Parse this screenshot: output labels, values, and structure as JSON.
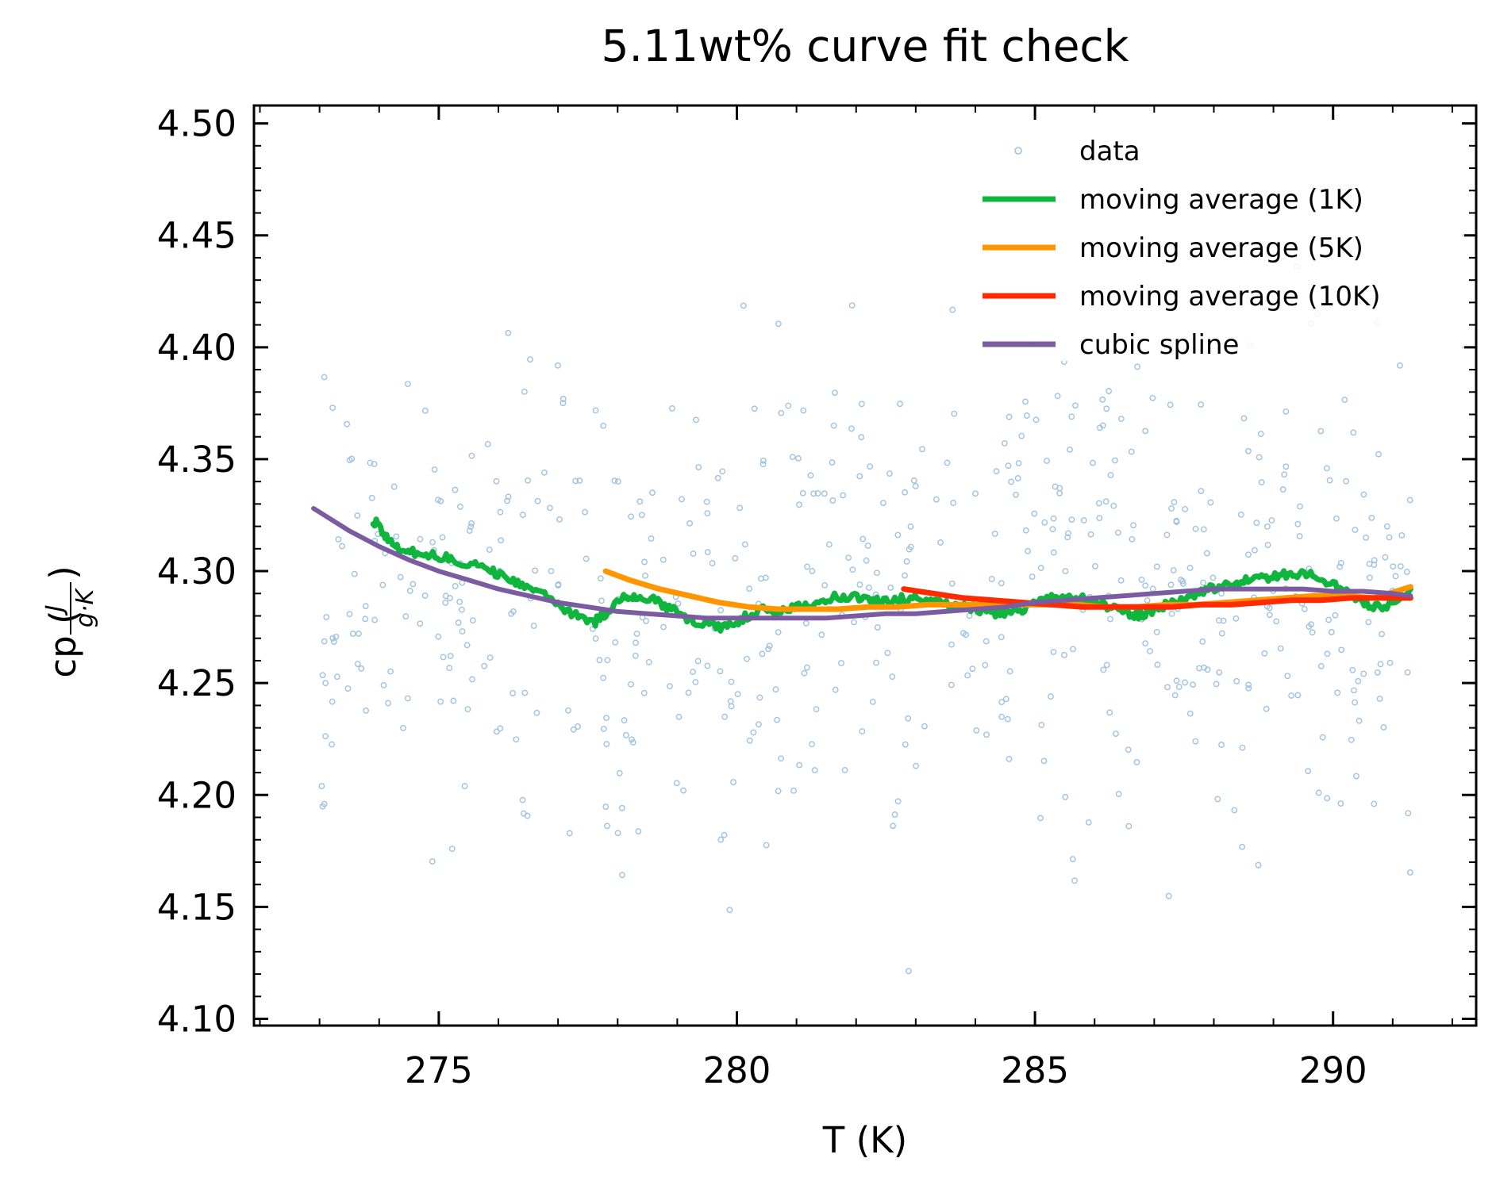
{
  "chart_data": {
    "type": "line",
    "title": "5.11wt% curve fit check",
    "xlabel": "T (K)",
    "ylabel": {
      "main": "cp (",
      "frac_num": "J",
      "frac_den": "g·K",
      "close": ")"
    },
    "xlim": [
      271.9,
      292.4
    ],
    "ylim": [
      4.097,
      4.508
    ],
    "xticks": [
      {
        "value": 275,
        "label": "275"
      },
      {
        "value": 280,
        "label": "280"
      },
      {
        "value": 285,
        "label": "285"
      },
      {
        "value": 290,
        "label": "290"
      }
    ],
    "yticks": [
      {
        "value": 4.1,
        "label": "4.10"
      },
      {
        "value": 4.15,
        "label": "4.15"
      },
      {
        "value": 4.2,
        "label": "4.20"
      },
      {
        "value": 4.25,
        "label": "4.25"
      },
      {
        "value": 4.3,
        "label": "4.30"
      },
      {
        "value": 4.35,
        "label": "4.35"
      },
      {
        "value": 4.4,
        "label": "4.40"
      },
      {
        "value": 4.45,
        "label": "4.45"
      },
      {
        "value": 4.5,
        "label": "4.50"
      }
    ],
    "legend_position": "top-right",
    "series": [
      {
        "name": "data",
        "kind": "scatter",
        "color": "#9ec2e0",
        "scatter_x_range": [
          273.0,
          291.3
        ],
        "scatter_y_center": 4.29,
        "scatter_y_spread": 0.055,
        "scatter_count": 620
      },
      {
        "name": "moving average (1K)",
        "kind": "line",
        "color": "#10b53e",
        "points": [
          [
            273.9,
            4.323
          ],
          [
            274.1,
            4.316
          ],
          [
            274.3,
            4.31
          ],
          [
            274.6,
            4.308
          ],
          [
            274.9,
            4.307
          ],
          [
            275.2,
            4.306
          ],
          [
            275.5,
            4.303
          ],
          [
            275.8,
            4.301
          ],
          [
            276.1,
            4.298
          ],
          [
            276.4,
            4.293
          ],
          [
            276.7,
            4.29
          ],
          [
            277.0,
            4.285
          ],
          [
            277.3,
            4.28
          ],
          [
            277.6,
            4.277
          ],
          [
            277.8,
            4.281
          ],
          [
            278.1,
            4.288
          ],
          [
            278.3,
            4.289
          ],
          [
            278.6,
            4.287
          ],
          [
            278.9,
            4.283
          ],
          [
            279.2,
            4.278
          ],
          [
            279.5,
            4.276
          ],
          [
            279.8,
            4.275
          ],
          [
            280.1,
            4.279
          ],
          [
            280.4,
            4.283
          ],
          [
            280.7,
            4.282
          ],
          [
            281.0,
            4.284
          ],
          [
            281.3,
            4.285
          ],
          [
            281.6,
            4.288
          ],
          [
            281.9,
            4.289
          ],
          [
            282.2,
            4.287
          ],
          [
            282.5,
            4.286
          ],
          [
            282.8,
            4.288
          ],
          [
            283.1,
            4.287
          ],
          [
            283.4,
            4.286
          ],
          [
            283.7,
            4.285
          ],
          [
            284.0,
            4.283
          ],
          [
            284.3,
            4.281
          ],
          [
            284.6,
            4.282
          ],
          [
            284.9,
            4.284
          ],
          [
            285.2,
            4.287
          ],
          [
            285.5,
            4.289
          ],
          [
            285.8,
            4.288
          ],
          [
            286.1,
            4.285
          ],
          [
            286.4,
            4.283
          ],
          [
            286.7,
            4.28
          ],
          [
            287.0,
            4.283
          ],
          [
            287.3,
            4.286
          ],
          [
            287.6,
            4.288
          ],
          [
            287.9,
            4.292
          ],
          [
            288.2,
            4.294
          ],
          [
            288.5,
            4.296
          ],
          [
            288.8,
            4.297
          ],
          [
            289.1,
            4.298
          ],
          [
            289.4,
            4.299
          ],
          [
            289.7,
            4.298
          ],
          [
            290.0,
            4.294
          ],
          [
            290.3,
            4.29
          ],
          [
            290.6,
            4.285
          ],
          [
            290.9,
            4.284
          ],
          [
            291.3,
            4.292
          ]
        ]
      },
      {
        "name": "moving average (5K)",
        "kind": "line",
        "color": "#ff9600",
        "points": [
          [
            277.8,
            4.3
          ],
          [
            278.2,
            4.296
          ],
          [
            278.7,
            4.292
          ],
          [
            279.2,
            4.289
          ],
          [
            279.7,
            4.286
          ],
          [
            280.2,
            4.284
          ],
          [
            280.7,
            4.283
          ],
          [
            281.2,
            4.283
          ],
          [
            281.7,
            4.283
          ],
          [
            282.2,
            4.284
          ],
          [
            282.7,
            4.284
          ],
          [
            283.2,
            4.285
          ],
          [
            283.7,
            4.285
          ],
          [
            284.2,
            4.285
          ],
          [
            284.7,
            4.285
          ],
          [
            285.2,
            4.285
          ],
          [
            285.7,
            4.285
          ],
          [
            286.2,
            4.284
          ],
          [
            286.7,
            4.284
          ],
          [
            287.2,
            4.285
          ],
          [
            287.7,
            4.285
          ],
          [
            288.2,
            4.286
          ],
          [
            288.7,
            4.287
          ],
          [
            289.2,
            4.288
          ],
          [
            289.7,
            4.289
          ],
          [
            290.2,
            4.289
          ],
          [
            290.7,
            4.288
          ],
          [
            291.3,
            4.293
          ]
        ]
      },
      {
        "name": "moving average (10K)",
        "kind": "line",
        "color": "#ff2b00",
        "points": [
          [
            282.8,
            4.292
          ],
          [
            283.3,
            4.29
          ],
          [
            283.8,
            4.288
          ],
          [
            284.3,
            4.287
          ],
          [
            284.8,
            4.286
          ],
          [
            285.3,
            4.285
          ],
          [
            285.8,
            4.284
          ],
          [
            286.3,
            4.284
          ],
          [
            286.8,
            4.284
          ],
          [
            287.3,
            4.284
          ],
          [
            287.8,
            4.285
          ],
          [
            288.3,
            4.285
          ],
          [
            288.8,
            4.286
          ],
          [
            289.3,
            4.287
          ],
          [
            289.8,
            4.287
          ],
          [
            290.3,
            4.288
          ],
          [
            290.8,
            4.288
          ],
          [
            291.3,
            4.288
          ]
        ]
      },
      {
        "name": "cubic spline",
        "kind": "line",
        "color": "#7b5ca1",
        "points": [
          [
            272.9,
            4.328
          ],
          [
            273.5,
            4.318
          ],
          [
            274.0,
            4.311
          ],
          [
            274.5,
            4.305
          ],
          [
            275.0,
            4.3
          ],
          [
            275.5,
            4.296
          ],
          [
            276.0,
            4.292
          ],
          [
            276.5,
            4.289
          ],
          [
            277.0,
            4.286
          ],
          [
            277.5,
            4.284
          ],
          [
            278.0,
            4.282
          ],
          [
            278.5,
            4.281
          ],
          [
            279.0,
            4.28
          ],
          [
            279.5,
            4.279
          ],
          [
            280.0,
            4.279
          ],
          [
            280.5,
            4.279
          ],
          [
            281.0,
            4.279
          ],
          [
            281.5,
            4.279
          ],
          [
            282.0,
            4.28
          ],
          [
            282.5,
            4.281
          ],
          [
            283.0,
            4.281
          ],
          [
            283.5,
            4.282
          ],
          [
            284.0,
            4.283
          ],
          [
            284.5,
            4.284
          ],
          [
            285.0,
            4.286
          ],
          [
            285.5,
            4.287
          ],
          [
            286.0,
            4.288
          ],
          [
            286.5,
            4.289
          ],
          [
            287.0,
            4.29
          ],
          [
            287.5,
            4.291
          ],
          [
            288.0,
            4.292
          ],
          [
            288.5,
            4.292
          ],
          [
            289.0,
            4.292
          ],
          [
            289.5,
            4.292
          ],
          [
            290.0,
            4.291
          ],
          [
            290.5,
            4.291
          ],
          [
            291.0,
            4.29
          ],
          [
            291.3,
            4.289
          ]
        ]
      }
    ]
  }
}
